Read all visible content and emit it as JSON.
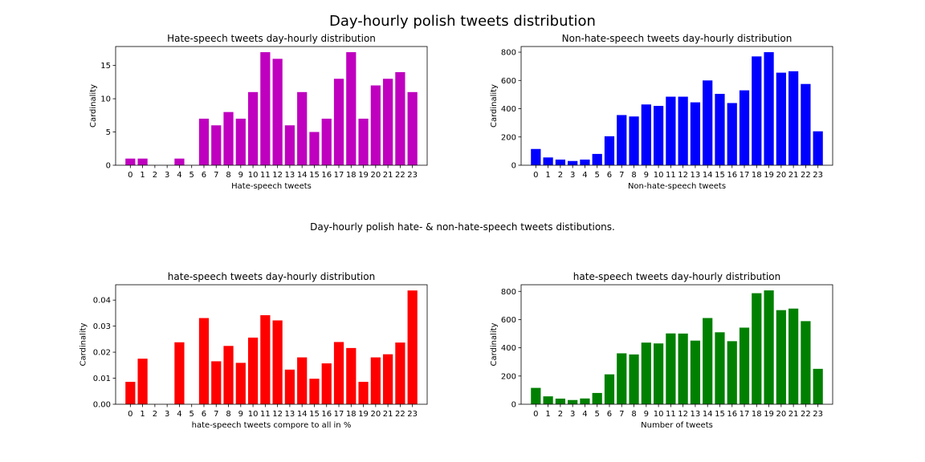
{
  "figure": {
    "suptitle": "Day-hourly polish tweets distribution",
    "caption": "Day-hourly polish hate- & non-hate-speech tweets distibutions."
  },
  "chart_data": [
    {
      "type": "bar",
      "title": "Hate-speech tweets day-hourly distribution",
      "xlabel": "Hate-speech tweets",
      "ylabel": "Cardinality",
      "color": "#bf00bf",
      "categories": [
        "0",
        "1",
        "2",
        "3",
        "4",
        "5",
        "6",
        "7",
        "8",
        "9",
        "10",
        "11",
        "12",
        "13",
        "14",
        "15",
        "16",
        "17",
        "18",
        "19",
        "20",
        "21",
        "22",
        "23"
      ],
      "values": [
        1,
        1,
        0,
        0,
        1,
        0,
        7,
        6,
        8,
        7,
        11,
        17,
        16,
        6,
        11,
        5,
        7,
        13,
        17,
        7,
        12,
        13,
        14,
        11
      ],
      "ylim": [
        0,
        17.85
      ],
      "yticks": [
        0,
        5,
        10,
        15
      ],
      "ytick_labels": [
        "0",
        "5",
        "10",
        "15"
      ]
    },
    {
      "type": "bar",
      "title": "Non-hate-speech tweets day-hourly distribution",
      "xlabel": "Non-hate-speech tweets",
      "ylabel": "Cardinality",
      "color": "#0000ff",
      "categories": [
        "0",
        "1",
        "2",
        "3",
        "4",
        "5",
        "6",
        "7",
        "8",
        "9",
        "10",
        "11",
        "12",
        "13",
        "14",
        "15",
        "16",
        "17",
        "18",
        "19",
        "20",
        "21",
        "22",
        "23"
      ],
      "values": [
        115,
        55,
        40,
        30,
        40,
        80,
        205,
        355,
        345,
        430,
        420,
        485,
        485,
        445,
        600,
        505,
        440,
        530,
        770,
        800,
        655,
        665,
        575,
        240
      ],
      "ylim": [
        0,
        840
      ],
      "yticks": [
        0,
        200,
        400,
        600,
        800
      ],
      "ytick_labels": [
        "0",
        "200",
        "400",
        "600",
        "800"
      ]
    },
    {
      "type": "bar",
      "title": "hate-speech tweets day-hourly distribution",
      "xlabel": "hate-speech tweets compore to all in %",
      "ylabel": "Cardinality",
      "color": "#ff0000",
      "categories": [
        "0",
        "1",
        "2",
        "3",
        "4",
        "5",
        "6",
        "7",
        "8",
        "9",
        "10",
        "11",
        "12",
        "13",
        "14",
        "15",
        "16",
        "17",
        "18",
        "19",
        "20",
        "21",
        "22",
        "23"
      ],
      "values": [
        0.0086,
        0.0175,
        0,
        0,
        0.0238,
        0,
        0.0331,
        0.0165,
        0.0224,
        0.0159,
        0.0256,
        0.0342,
        0.0322,
        0.0133,
        0.018,
        0.0098,
        0.0157,
        0.0239,
        0.0216,
        0.0086,
        0.018,
        0.0192,
        0.0237,
        0.0437
      ],
      "ylim": [
        0,
        0.0459
      ],
      "yticks": [
        0,
        0.01,
        0.02,
        0.03,
        0.04
      ],
      "ytick_labels": [
        "0.00",
        "0.01",
        "0.02",
        "0.03",
        "0.04"
      ]
    },
    {
      "type": "bar",
      "title": "hate-speech tweets day-hourly distribution",
      "xlabel": "Number of tweets",
      "ylabel": "Cardinality",
      "color": "#008000",
      "categories": [
        "0",
        "1",
        "2",
        "3",
        "4",
        "5",
        "6",
        "7",
        "8",
        "9",
        "10",
        "11",
        "12",
        "13",
        "14",
        "15",
        "16",
        "17",
        "18",
        "19",
        "20",
        "21",
        "22",
        "23"
      ],
      "values": [
        116,
        56,
        40,
        30,
        41,
        80,
        212,
        361,
        353,
        437,
        431,
        502,
        501,
        451,
        611,
        510,
        447,
        543,
        787,
        807,
        667,
        678,
        589,
        251
      ],
      "ylim": [
        0,
        847
      ],
      "yticks": [
        0,
        200,
        400,
        600,
        800
      ],
      "ytick_labels": [
        "0",
        "200",
        "400",
        "600",
        "800"
      ]
    }
  ]
}
